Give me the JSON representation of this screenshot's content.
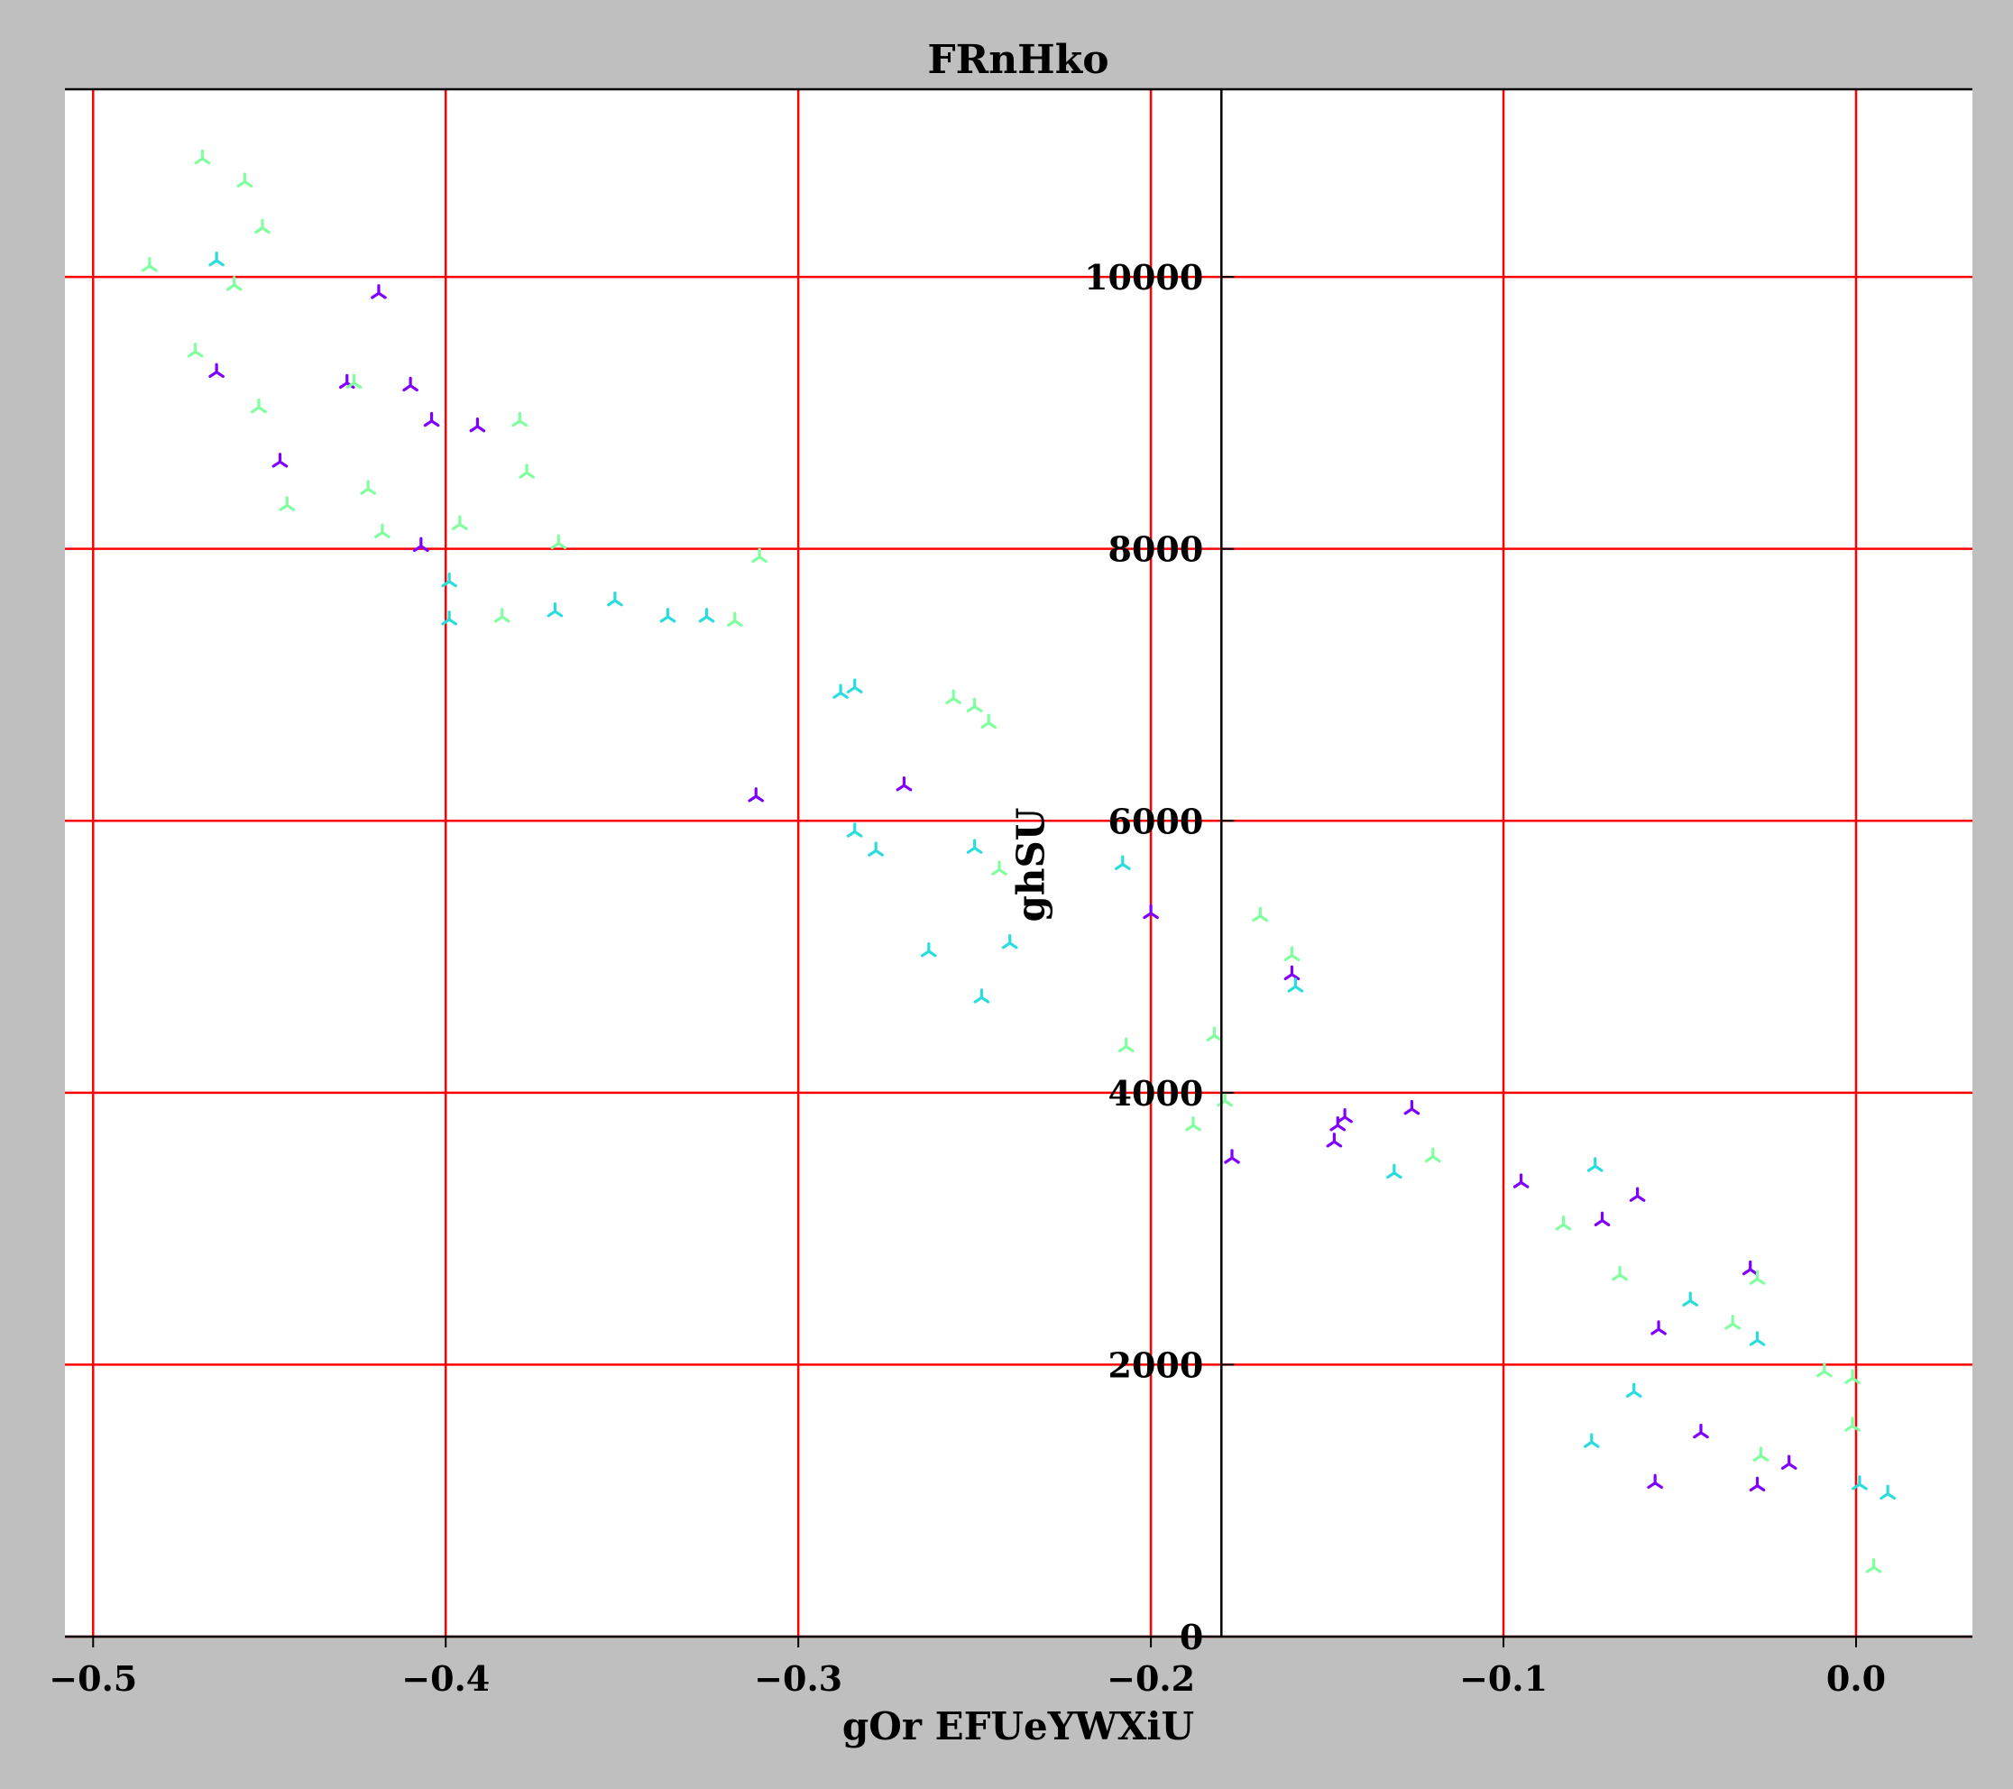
{
  "chart_data": {
    "type": "scatter",
    "title": "FRnHko",
    "xlabel": "gOr EFUeYWXiU",
    "ylabel": "ghSU",
    "xlim": [
      -0.508,
      0.033
    ],
    "ylim": [
      0,
      11380
    ],
    "x_ticks": [
      -0.5,
      -0.4,
      -0.3,
      -0.2,
      -0.1,
      0.0
    ],
    "x_tick_labels": [
      "−0.5",
      "−0.4",
      "−0.3",
      "−0.2",
      "−0.1",
      "0.0"
    ],
    "y_ticks": [
      0,
      2000,
      4000,
      6000,
      8000,
      10000
    ],
    "y_tick_labels": [
      "0",
      "2000",
      "4000",
      "6000",
      "8000",
      "10000"
    ],
    "y_axis_position_x": -0.18,
    "grid": true,
    "grid_color": "#ff0000",
    "legend": "none",
    "marker": "tri_down",
    "series": [
      {
        "color": "#7f00ff",
        "points": [
          [
            -0.419,
            9880
          ],
          [
            -0.465,
            9300
          ],
          [
            -0.428,
            9220
          ],
          [
            -0.41,
            9200
          ],
          [
            -0.404,
            8940
          ],
          [
            -0.391,
            8900
          ],
          [
            -0.447,
            8640
          ],
          [
            -0.407,
            8020
          ],
          [
            -0.312,
            6180
          ],
          [
            -0.27,
            6260
          ],
          [
            -0.2,
            5320
          ],
          [
            -0.16,
            4870
          ],
          [
            -0.147,
            3760
          ],
          [
            -0.145,
            3820
          ],
          [
            -0.148,
            3640
          ],
          [
            -0.177,
            3520
          ],
          [
            -0.126,
            3880
          ],
          [
            -0.095,
            3340
          ],
          [
            -0.072,
            3060
          ],
          [
            -0.062,
            3240
          ],
          [
            -0.03,
            2700
          ],
          [
            -0.056,
            2260
          ],
          [
            -0.044,
            1500
          ],
          [
            -0.057,
            1130
          ],
          [
            -0.028,
            1110
          ],
          [
            -0.019,
            1270
          ]
        ]
      },
      {
        "color": "#2adddd",
        "points": [
          [
            -0.465,
            10120
          ],
          [
            -0.399,
            7760
          ],
          [
            -0.399,
            7480
          ],
          [
            -0.369,
            7540
          ],
          [
            -0.352,
            7620
          ],
          [
            -0.337,
            7500
          ],
          [
            -0.326,
            7500
          ],
          [
            -0.288,
            6940
          ],
          [
            -0.284,
            6980
          ],
          [
            -0.284,
            5920
          ],
          [
            -0.278,
            5780
          ],
          [
            -0.25,
            5800
          ],
          [
            -0.263,
            5040
          ],
          [
            -0.24,
            5100
          ],
          [
            -0.248,
            4700
          ],
          [
            -0.208,
            5680
          ],
          [
            -0.159,
            4780
          ],
          [
            -0.131,
            3410
          ],
          [
            -0.074,
            3460
          ],
          [
            -0.047,
            2470
          ],
          [
            -0.063,
            1800
          ],
          [
            -0.075,
            1430
          ],
          [
            0.001,
            1120
          ],
          [
            0.009,
            1050
          ],
          [
            -0.028,
            2180
          ]
        ]
      },
      {
        "color": "#80ff9e",
        "points": [
          [
            -0.469,
            10870
          ],
          [
            -0.457,
            10700
          ],
          [
            -0.452,
            10360
          ],
          [
            -0.484,
            10080
          ],
          [
            -0.46,
            9940
          ],
          [
            -0.471,
            9450
          ],
          [
            -0.426,
            9220
          ],
          [
            -0.453,
            9040
          ],
          [
            -0.379,
            8940
          ],
          [
            -0.377,
            8560
          ],
          [
            -0.422,
            8440
          ],
          [
            -0.445,
            8320
          ],
          [
            -0.396,
            8180
          ],
          [
            -0.418,
            8120
          ],
          [
            -0.368,
            8040
          ],
          [
            -0.311,
            7940
          ],
          [
            -0.384,
            7500
          ],
          [
            -0.318,
            7470
          ],
          [
            -0.256,
            6900
          ],
          [
            -0.25,
            6840
          ],
          [
            -0.246,
            6720
          ],
          [
            -0.243,
            5640
          ],
          [
            -0.207,
            4340
          ],
          [
            -0.182,
            4420
          ],
          [
            -0.179,
            3940
          ],
          [
            -0.188,
            3760
          ],
          [
            -0.169,
            5300
          ],
          [
            -0.16,
            5010
          ],
          [
            -0.12,
            3530
          ],
          [
            -0.083,
            3030
          ],
          [
            -0.067,
            2660
          ],
          [
            -0.035,
            2300
          ],
          [
            -0.028,
            2630
          ],
          [
            -0.009,
            1950
          ],
          [
            -0.001,
            1900
          ],
          [
            -0.001,
            1550
          ],
          [
            -0.027,
            1330
          ],
          [
            0.005,
            510
          ]
        ]
      }
    ]
  }
}
